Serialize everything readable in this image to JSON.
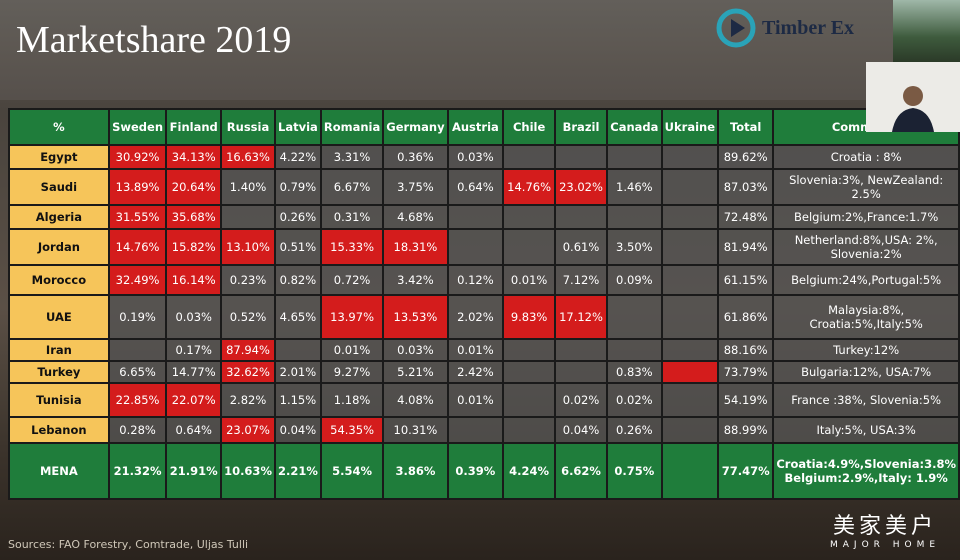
{
  "title": "Marketshare 2019",
  "logo": "Timber Ex",
  "source": "Sources: FAO Forestry, Comtrade, Uljas Tulli",
  "watermark": {
    "main": "美家美户",
    "sub": "MAJOR HOME"
  },
  "table": {
    "highlight_color": "#d41c1c",
    "header": [
      "%",
      "Sweden",
      "Finland",
      "Russia",
      "Latvia",
      "Romania",
      "Germany",
      "Austria",
      "Chile",
      "Brazil",
      "Canada",
      "Ukraine",
      "Total",
      "Comments"
    ],
    "rows": [
      {
        "label": "Egypt",
        "height": 24,
        "cells": [
          {
            "text": "30.92%",
            "highlight": true
          },
          {
            "text": "34.13%",
            "highlight": true
          },
          {
            "text": "16.63%",
            "highlight": true
          },
          "4.22%",
          "3.31%",
          "0.36%",
          "0.03%",
          null,
          null,
          null,
          null,
          "89.62%",
          "Croatia : 8%"
        ]
      },
      {
        "label": "Saudi",
        "height": 36,
        "cells": [
          {
            "text": "13.89%",
            "highlight": true
          },
          {
            "text": "20.64%",
            "highlight": true
          },
          "1.40%",
          "0.79%",
          "6.67%",
          "3.75%",
          "0.64%",
          {
            "text": "14.76%",
            "highlight": true
          },
          {
            "text": "23.02%",
            "highlight": true
          },
          "1.46%",
          null,
          "87.03%",
          "Slovenia:3%, NewZealand: 2.5%"
        ]
      },
      {
        "label": "Algeria",
        "height": 24,
        "cells": [
          {
            "text": "31.55%",
            "highlight": true
          },
          {
            "text": "35.68%",
            "highlight": true
          },
          null,
          "0.26%",
          "0.31%",
          "4.68%",
          null,
          null,
          null,
          null,
          null,
          "72.48%",
          "Belgium:2%,France:1.7%"
        ]
      },
      {
        "label": "Jordan",
        "height": 36,
        "cells": [
          {
            "text": "14.76%",
            "highlight": true
          },
          {
            "text": "15.82%",
            "highlight": true
          },
          {
            "text": "13.10%",
            "highlight": true
          },
          "0.51%",
          {
            "text": "15.33%",
            "highlight": true
          },
          {
            "text": "18.31%",
            "highlight": true
          },
          null,
          null,
          "0.61%",
          "3.50%",
          null,
          "81.94%",
          "Netherland:8%,USA: 2%, Slovenia:2%"
        ]
      },
      {
        "label": "Morocco",
        "height": 30,
        "cells": [
          {
            "text": "32.49%",
            "highlight": true
          },
          {
            "text": "16.14%",
            "highlight": true
          },
          "0.23%",
          "0.82%",
          "0.72%",
          "3.42%",
          "0.12%",
          "0.01%",
          "7.12%",
          "0.09%",
          null,
          "61.15%",
          "Belgium:24%,Portugal:5%"
        ]
      },
      {
        "label": "UAE",
        "height": 44,
        "cells": [
          "0.19%",
          "0.03%",
          "0.52%",
          "4.65%",
          {
            "text": "13.97%",
            "highlight": true
          },
          {
            "text": "13.53%",
            "highlight": true
          },
          "2.02%",
          {
            "text": "9.83%",
            "highlight": true
          },
          {
            "text": "17.12%",
            "highlight": true
          },
          null,
          null,
          "61.86%",
          "Malaysia:8%, Croatia:5%,Italy:5%"
        ]
      },
      {
        "label": "Iran",
        "height": 22,
        "cells": [
          null,
          "0.17%",
          {
            "text": "87.94%",
            "highlight": true
          },
          null,
          "0.01%",
          "0.03%",
          "0.01%",
          null,
          null,
          null,
          null,
          "88.16%",
          "Turkey:12%"
        ]
      },
      {
        "label": "Turkey",
        "height": 22,
        "cells": [
          "6.65%",
          "14.77%",
          {
            "text": "32.62%",
            "highlight": true
          },
          "2.01%",
          "9.27%",
          "5.21%",
          "2.42%",
          null,
          null,
          "0.83%",
          {
            "text": null,
            "highlight": true
          },
          "73.79%",
          "Bulgaria:12%, USA:7%"
        ]
      },
      {
        "label": "Tunisia",
        "height": 34,
        "cells": [
          {
            "text": "22.85%",
            "highlight": true
          },
          {
            "text": "22.07%",
            "highlight": true
          },
          "2.82%",
          "1.15%",
          "1.18%",
          "4.08%",
          "0.01%",
          null,
          "0.02%",
          "0.02%",
          null,
          "54.19%",
          "France :38%, Slovenia:5%"
        ]
      },
      {
        "label": "Lebanon",
        "height": 26,
        "cells": [
          "0.28%",
          "0.64%",
          {
            "text": "23.07%",
            "highlight": true
          },
          "0.04%",
          {
            "text": "54.35%",
            "highlight": true
          },
          "10.31%",
          null,
          null,
          "0.04%",
          "0.26%",
          null,
          "88.99%",
          "Italy:5%, USA:3%"
        ]
      }
    ],
    "summary": {
      "label": "MENA",
      "cells": [
        "21.32%",
        "21.91%",
        "10.63%",
        "2.21%",
        "5.54%",
        "3.86%",
        "0.39%",
        "4.24%",
        "6.62%",
        "0.75%",
        null,
        "77.47%",
        "Croatia:4.9%,Slovenia:3.8% Belgium:2.9%,Italy: 1.9%"
      ]
    }
  }
}
